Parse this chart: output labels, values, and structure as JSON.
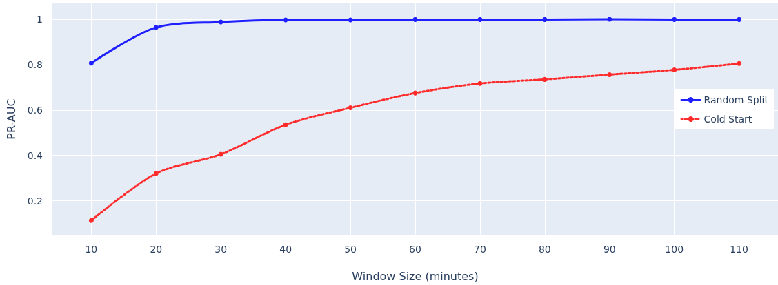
{
  "chart_data": {
    "type": "line",
    "xlabel": "Window Size (minutes)",
    "ylabel": "PR-AUC",
    "x": [
      10,
      20,
      30,
      40,
      50,
      60,
      70,
      80,
      90,
      100,
      110
    ],
    "series": [
      {
        "name": "Random Split",
        "color": "#1f1fff",
        "line_style": "solid",
        "values": [
          0.807,
          0.964,
          0.988,
          0.997,
          0.997,
          0.999,
          0.999,
          0.999,
          1.0,
          0.999,
          0.999
        ]
      },
      {
        "name": "Cold Start",
        "color": "#ff2a2a",
        "line_style": "dotted",
        "values": [
          0.113,
          0.32,
          0.405,
          0.535,
          0.61,
          0.675,
          0.717,
          0.735,
          0.756,
          0.777,
          0.805
        ]
      }
    ],
    "xlim": [
      4,
      116
    ],
    "xticks": [
      10,
      20,
      30,
      40,
      50,
      60,
      70,
      80,
      90,
      100,
      110
    ],
    "ylim": [
      0.05,
      1.07
    ],
    "yticks": [
      0.2,
      0.4,
      0.6,
      0.8,
      1
    ],
    "grid": true,
    "legend": "right",
    "marker": "circle"
  }
}
